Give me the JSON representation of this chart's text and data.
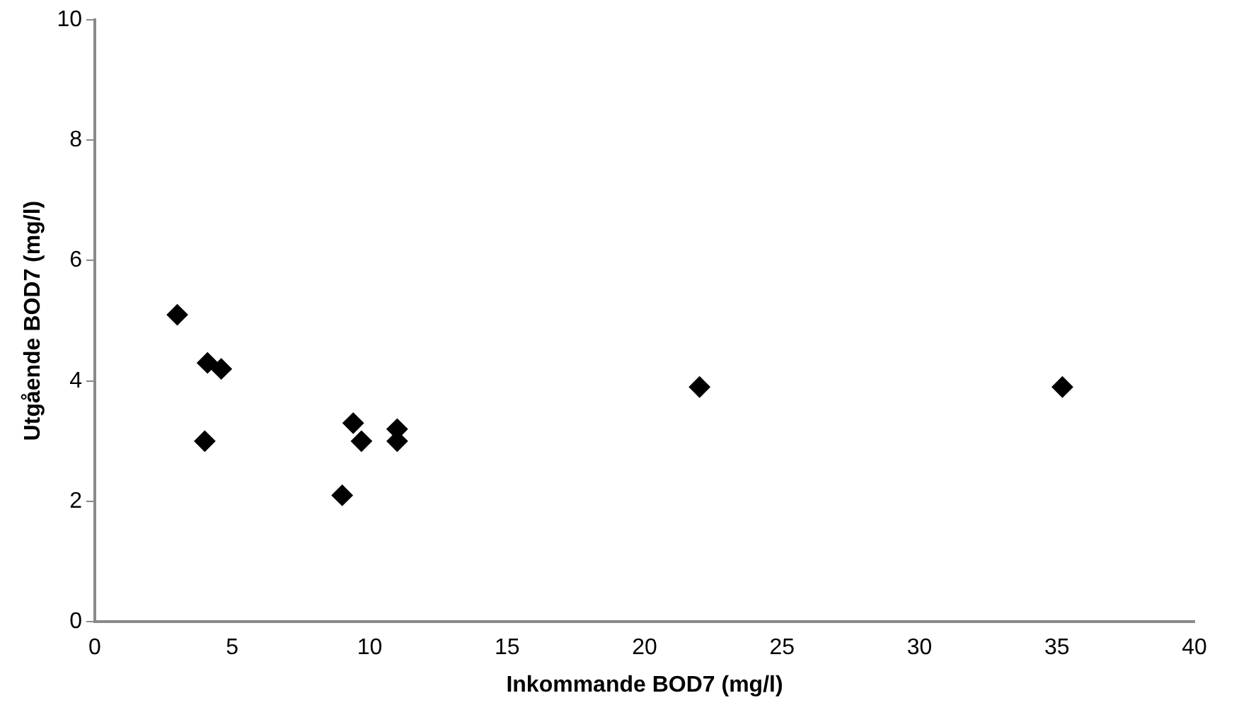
{
  "chart_data": {
    "type": "scatter",
    "xlabel": "Inkommande BOD7 (mg/l)",
    "ylabel": "Utgående BOD7 (mg/l)",
    "x": [
      3.0,
      4.1,
      4.6,
      4.0,
      9.4,
      9.7,
      9.0,
      11.0,
      11.0,
      22.0,
      35.2
    ],
    "values": [
      5.1,
      4.3,
      4.2,
      3.0,
      3.3,
      3.0,
      2.1,
      3.2,
      3.0,
      3.9,
      3.9
    ],
    "color": "#000000",
    "marker": "diamond",
    "xlim": [
      0,
      40
    ],
    "xticks": [
      0,
      5,
      10,
      15,
      20,
      25,
      30,
      35,
      40
    ],
    "ylim": [
      0,
      10
    ],
    "yticks": [
      0,
      2,
      4,
      6,
      8,
      10
    ],
    "grid": false,
    "legend": false
  }
}
